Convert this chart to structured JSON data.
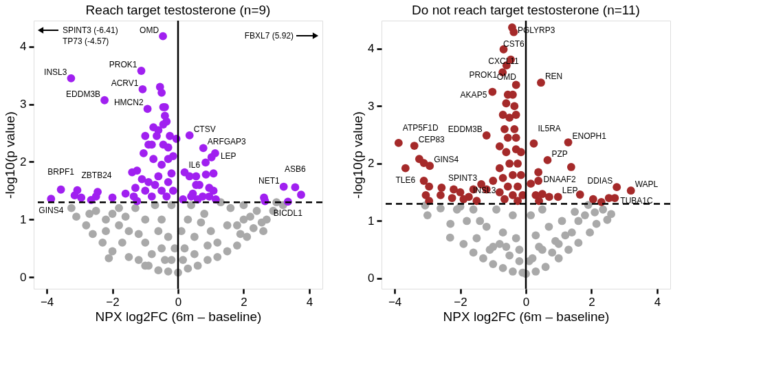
{
  "chart_data": [
    {
      "type": "scatter",
      "title": "Reach target testosterone (n=9)",
      "xlabel": "NPX log2FC (6m – baseline)",
      "ylabel": "-log10(p value)",
      "xlim": [
        -4.4,
        4.4
      ],
      "ylim": [
        -0.2,
        4.45
      ],
      "xticks": [
        -4,
        -2,
        0,
        2,
        4
      ],
      "yticks": [
        0,
        1,
        2,
        3,
        4
      ],
      "grid": false,
      "marker": "circle",
      "series": [
        {
          "color": "#a9a9a9",
          "x": [
            -3.25,
            -3.1,
            -2.8,
            -2.5,
            -2.2,
            -2.0,
            -1.8,
            -2.6,
            -2.3,
            -2.0,
            -1.7,
            -1.5,
            -1.2,
            -0.9,
            -0.6,
            -0.3,
            0.0,
            0.3,
            0.6,
            0.9,
            1.2,
            1.5,
            1.8,
            2.1,
            2.3,
            2.55,
            2.7,
            2.9,
            3.0,
            3.2,
            2.4,
            2.0,
            1.6,
            1.3,
            2.2,
            -2.11,
            -1.5,
            -1.0,
            -0.5,
            -0.2,
            0.2,
            0.5,
            1.0,
            1.5,
            -1.0,
            -0.5,
            0.3,
            0.8,
            -1.3,
            -0.7,
            -0.2,
            0.4,
            -0.3,
            0.1,
            -0.8,
            0.5,
            -2.2,
            -1.8,
            1.8,
            1.2,
            2.0,
            1.9,
            -1.2,
            -0.1,
            0.7,
            -0.6,
            -1.6,
            -2.7,
            -0.4,
            0.15,
            0.9,
            -1.0,
            2.6
          ],
          "values": [
            1.2,
            1.05,
            0.9,
            1.15,
            1.0,
            1.1,
            1.2,
            0.75,
            0.6,
            0.45,
            0.6,
            0.35,
            0.3,
            0.2,
            0.12,
            0.1,
            0.08,
            0.15,
            0.2,
            0.3,
            0.35,
            0.45,
            0.55,
            0.7,
            0.85,
            0.95,
            1.0,
            1.15,
            1.3,
            1.25,
            1.15,
            1.25,
            1.2,
            1.3,
            1.05,
            0.33,
            0.8,
            0.6,
            0.5,
            0.3,
            0.5,
            0.7,
            0.8,
            0.9,
            1.0,
            1.0,
            1.0,
            1.1,
            1.2,
            1.25,
            1.25,
            1.25,
            0.7,
            0.8,
            0.4,
            0.4,
            0.8,
            0.9,
            0.9,
            0.6,
            1.0,
            0.75,
            0.75,
            0.5,
            0.95,
            0.8,
            1.05,
            1.1,
            0.3,
            0.3,
            0.55,
            0.2,
            0.8
          ]
        },
        {
          "color": "#a020f0",
          "x": [
            -0.46,
            -1.12,
            -3.26,
            -1.08,
            -2.24,
            -0.93,
            0.35,
            0.77,
            1.13,
            0.84,
            -3.57,
            -3.87,
            -3.07,
            3.22,
            3.57,
            3.75,
            3.35,
            -0.55,
            -0.5,
            -0.4,
            -0.45,
            -0.4,
            -0.35,
            -0.45,
            -0.75,
            -0.6,
            -1.0,
            -0.25,
            -0.65,
            -0.9,
            -0.8,
            -1.05,
            -0.45,
            -0.3,
            -0.75,
            -0.3,
            -0.5,
            -1.25,
            -1.4,
            -0.2,
            -0.6,
            -1.1,
            -0.9,
            -0.3,
            -0.7,
            -1.3,
            -1.0,
            -0.5,
            -0.15,
            -1.6,
            -0.8,
            -1.35,
            -0.35,
            -1.25,
            -2.0,
            -2.5,
            -2.45,
            -2.65,
            -2.95,
            -3.15,
            -0.05,
            -0.15,
            0.2,
            0.35,
            0.55,
            0.45,
            0.55,
            0.65,
            0.85,
            0.95,
            1.08,
            0.4,
            0.75,
            0.95,
            0.6,
            0.15,
            1.15,
            1.02,
            1.08,
            2.62,
            2.65
          ],
          "values": [
            4.18,
            3.58,
            3.45,
            3.26,
            3.07,
            2.92,
            2.46,
            2.24,
            2.15,
            1.99,
            1.52,
            1.36,
            1.51,
            1.57,
            1.56,
            1.43,
            1.31,
            3.3,
            3.2,
            2.95,
            2.95,
            2.8,
            2.7,
            2.65,
            2.6,
            2.55,
            2.45,
            2.45,
            2.45,
            2.3,
            2.3,
            2.15,
            2.3,
            2.25,
            2.05,
            2.05,
            1.95,
            1.85,
            1.82,
            1.8,
            1.75,
            1.7,
            1.65,
            1.65,
            1.6,
            1.55,
            1.5,
            1.5,
            1.5,
            1.45,
            1.4,
            1.4,
            1.4,
            1.32,
            1.38,
            1.4,
            1.48,
            1.34,
            1.38,
            1.42,
            2.4,
            2.1,
            1.82,
            1.75,
            1.75,
            1.45,
            1.6,
            1.6,
            1.78,
            1.55,
            1.5,
            1.4,
            1.4,
            1.4,
            1.35,
            1.35,
            1.35,
            2.08,
            1.8,
            1.38,
            1.32
          ]
        }
      ],
      "ref_lines": [
        {
          "axis": "y",
          "value": 1.3,
          "color": "#000000",
          "line_style": "dashed"
        },
        {
          "axis": "x",
          "value": 0,
          "color": "#000000",
          "line_style": "solid"
        }
      ],
      "annotations": [
        {
          "text": "OMD",
          "x": -0.46,
          "y": 4.18
        },
        {
          "text": "PROK1",
          "x": -1.12,
          "y": 3.58
        },
        {
          "text": "INSL3",
          "x": -3.26,
          "y": 3.45
        },
        {
          "text": "ACRV1",
          "x": -1.08,
          "y": 3.26
        },
        {
          "text": "EDDM3B",
          "x": -2.24,
          "y": 3.07
        },
        {
          "text": "HMCN2",
          "x": -0.93,
          "y": 2.92
        },
        {
          "text": "CTSV",
          "x": 0.35,
          "y": 2.46
        },
        {
          "text": "ARFGAP3",
          "x": 0.77,
          "y": 2.24
        },
        {
          "text": "LEP",
          "x": 1.13,
          "y": 2.15
        },
        {
          "text": "IL6",
          "x": 0.84,
          "y": 1.99
        },
        {
          "text": "BRPF1",
          "x": -3.57,
          "y": 1.52
        },
        {
          "text": "GINS4",
          "x": -3.87,
          "y": 1.36
        },
        {
          "text": "ZBTB24",
          "x": -3.07,
          "y": 1.51
        },
        {
          "text": "NET1",
          "x": 3.22,
          "y": 1.57
        },
        {
          "text": "ASB6",
          "x": 3.57,
          "y": 1.56
        },
        {
          "text": "BICDL1",
          "x": 3.35,
          "y": 1.31
        },
        "SPINT3 (-6.41)",
        "TP73 (-4.57)",
        "FBXL7 (5.92)"
      ]
    },
    {
      "type": "scatter",
      "title": "Do not reach target testosterone (n=11)",
      "xlabel": "NPX log2FC (6m – baseline)",
      "ylabel": "-log10(p value)",
      "xlim": [
        -4.4,
        4.4
      ],
      "ylim": [
        -0.18,
        4.49
      ],
      "xticks": [
        -4,
        -2,
        0,
        2,
        4
      ],
      "yticks": [
        0,
        1,
        2,
        3,
        4
      ],
      "grid": false,
      "marker": "circle",
      "series": [
        {
          "color": "#a9a9a9",
          "x": [
            -3.07,
            -3.0,
            -2.1,
            -2.3,
            -2.31,
            -1.9,
            -1.6,
            -1.3,
            -1.0,
            -0.7,
            -0.4,
            -0.1,
            0.0,
            0.3,
            0.6,
            1.0,
            1.3,
            1.6,
            1.95,
            2.15,
            2.48,
            2.35,
            1.9,
            1.49,
            2.6,
            -1.5,
            -1.0,
            -0.5,
            -0.2,
            0.2,
            0.5,
            0.9,
            1.2,
            -1.8,
            -1.2,
            -0.7,
            -0.3,
            0.3,
            0.7,
            1.1,
            1.6,
            -1.6,
            -0.9,
            -0.4,
            0.15,
            0.5,
            -2.0,
            -1.4,
            -0.6,
            0.4,
            1.0,
            1.8,
            0.1,
            -0.2,
            -0.8,
            0.8,
            -1.1,
            1.4,
            2.1,
            -2.6
          ],
          "values": [
            1.27,
            1.1,
            1.2,
            0.95,
            0.71,
            0.6,
            0.45,
            0.35,
            0.25,
            0.18,
            0.12,
            0.1,
            0.08,
            0.12,
            0.2,
            0.35,
            0.5,
            0.62,
            0.8,
            0.95,
            1.02,
            1.2,
            1.28,
            1.16,
            1.12,
            0.7,
            0.55,
            0.4,
            0.3,
            0.35,
            0.5,
            0.65,
            0.75,
            1.0,
            0.9,
            0.8,
            0.7,
            0.75,
            0.9,
            1.0,
            1.0,
            1.2,
            1.2,
            1.1,
            1.1,
            1.2,
            1.25,
            1.0,
            0.55,
            0.55,
            0.6,
            1.1,
            0.3,
            0.5,
            0.6,
            0.45,
            0.5,
            0.8,
            1.15,
            1.22
          ]
        },
        {
          "color": "#a52a2a",
          "x": [
            -0.42,
            -0.37,
            -0.68,
            -0.59,
            -0.46,
            -0.71,
            0.46,
            -1.02,
            -1.2,
            -3.88,
            -3.4,
            -3.25,
            -2.93,
            -3.11,
            -3.67,
            0.24,
            1.29,
            0.66,
            1.38,
            2.77,
            3.2,
            2.71,
            2.53,
            1.65,
            0.98,
            0.71,
            -1.36,
            -1.74,
            -0.3,
            -0.4,
            -0.55,
            -0.35,
            -0.6,
            -0.7,
            -0.5,
            -0.3,
            -0.65,
            -0.35,
            -0.55,
            -0.3,
            -0.8,
            -0.6,
            -0.3,
            -0.15,
            -0.5,
            -0.25,
            -0.8,
            -0.7,
            -0.4,
            -0.15,
            -1.0,
            -0.55,
            -0.25,
            -1.2,
            -0.8,
            -0.4,
            -0.1,
            -0.65,
            -0.25,
            -1.5,
            -1.6,
            -3.11,
            -2.95,
            -3.05,
            -2.95,
            -2.57,
            -2.6,
            -2.2,
            -2.0,
            -2.25,
            -1.9,
            0.38,
            0.38,
            0.15,
            0.5,
            0.3,
            0.4,
            2.05,
            2.3
          ],
          "values": [
            4.37,
            4.29,
            3.99,
            3.71,
            3.81,
            3.59,
            3.41,
            3.25,
            2.49,
            2.36,
            2.31,
            2.08,
            1.96,
            2.01,
            1.92,
            2.35,
            2.37,
            2.06,
            1.94,
            1.59,
            1.53,
            1.4,
            1.4,
            1.46,
            1.42,
            1.42,
            1.64,
            1.42,
            3.37,
            3.2,
            3.2,
            3.0,
            3.05,
            2.85,
            2.8,
            2.85,
            2.6,
            2.6,
            2.45,
            2.45,
            2.3,
            2.2,
            2.25,
            2.2,
            2.0,
            2.0,
            1.92,
            1.75,
            1.8,
            1.8,
            1.7,
            1.6,
            1.6,
            1.55,
            1.5,
            1.45,
            1.45,
            1.38,
            1.35,
            1.35,
            1.55,
            1.7,
            1.6,
            1.45,
            1.35,
            1.58,
            1.45,
            1.55,
            1.5,
            1.4,
            1.38,
            1.85,
            1.7,
            1.65,
            1.47,
            1.45,
            1.35,
            1.38,
            1.33
          ]
        }
      ],
      "ref_lines": [
        {
          "axis": "y",
          "value": 1.3,
          "color": "#000000",
          "line_style": "dashed"
        },
        {
          "axis": "x",
          "value": 0,
          "color": "#000000",
          "line_style": "solid"
        }
      ],
      "annotations": [
        {
          "text": "PGLYRP3",
          "x": -0.42,
          "y": 4.37
        },
        {
          "text": "CST6",
          "x": -0.37,
          "y": 4.29
        },
        {
          "text": "CXCL11",
          "x": -0.68,
          "y": 3.99
        },
        {
          "text": "OMD",
          "x": -0.59,
          "y": 3.71
        },
        {
          "text": "PROK1",
          "x": -0.71,
          "y": 3.59
        },
        {
          "text": "REN",
          "x": 0.46,
          "y": 3.41
        },
        {
          "text": "AKAP5",
          "x": -1.02,
          "y": 3.25
        },
        {
          "text": "EDDM3B",
          "x": -1.2,
          "y": 2.49
        },
        {
          "text": "ATP5F1D",
          "x": -3.88,
          "y": 2.36
        },
        {
          "text": "CEP83",
          "x": -3.4,
          "y": 2.31
        },
        {
          "text": "GINS4",
          "x": -2.93,
          "y": 1.96
        },
        {
          "text": "TLE6",
          "x": -3.67,
          "y": 1.92
        },
        {
          "text": "IL5RA",
          "x": 0.24,
          "y": 2.35
        },
        {
          "text": "ENOPH1",
          "x": 1.29,
          "y": 2.37
        },
        {
          "text": "PZP",
          "x": 0.66,
          "y": 2.06
        },
        {
          "text": "DDIAS",
          "x": 2.77,
          "y": 1.59
        },
        {
          "text": "WAPL",
          "x": 3.2,
          "y": 1.53
        },
        {
          "text": "TUBA1C",
          "x": 2.71,
          "y": 1.4
        },
        {
          "text": "DNAAF2",
          "x": 1.65,
          "y": 1.46
        },
        {
          "text": "LEP",
          "x": 0.98,
          "y": 1.42
        },
        {
          "text": "SPINT3",
          "x": -1.36,
          "y": 1.64
        },
        {
          "text": "INSL3",
          "x": -1.74,
          "y": 1.42
        }
      ]
    }
  ]
}
